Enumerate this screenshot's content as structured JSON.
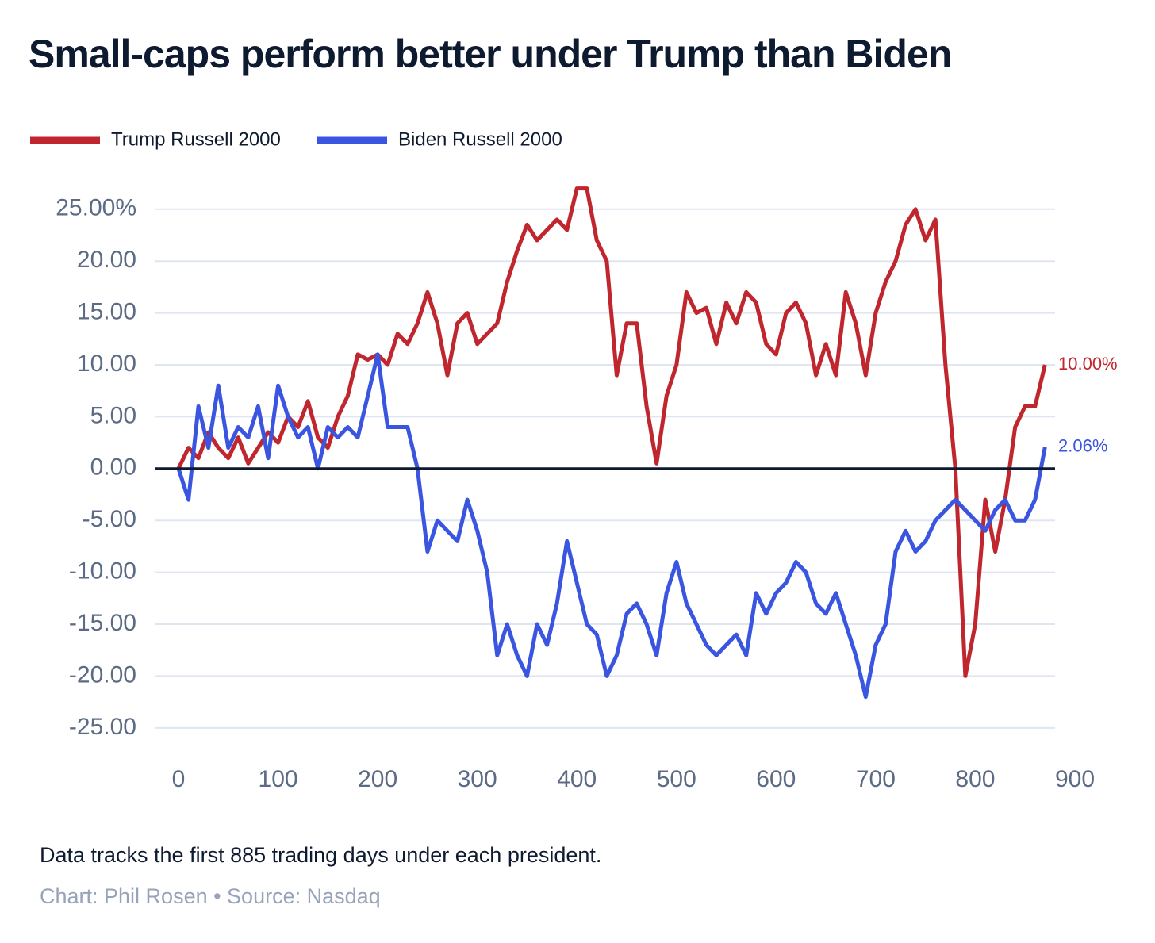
{
  "chart_data": {
    "type": "line",
    "title": "Small-caps perform better under Trump than Biden",
    "caption": "Data tracks the first 885 trading days under each president.",
    "source": "Chart: Phil Rosen • Source: Nasdaq",
    "x": [
      0,
      10,
      20,
      30,
      40,
      50,
      60,
      70,
      80,
      90,
      100,
      110,
      120,
      130,
      140,
      150,
      160,
      170,
      180,
      190,
      200,
      210,
      220,
      230,
      240,
      250,
      260,
      270,
      280,
      290,
      300,
      310,
      320,
      330,
      340,
      350,
      360,
      370,
      380,
      390,
      400,
      410,
      420,
      430,
      440,
      450,
      460,
      470,
      480,
      490,
      500,
      510,
      520,
      530,
      540,
      550,
      560,
      570,
      580,
      590,
      600,
      610,
      620,
      630,
      640,
      650,
      660,
      670,
      680,
      690,
      700,
      710,
      720,
      730,
      740,
      750,
      760,
      770,
      780,
      790,
      800,
      810,
      820,
      830,
      840,
      850,
      860,
      870
    ],
    "series": [
      {
        "name": "Trump Russell 2000",
        "color": "#c0262d",
        "end_label": "10.00%",
        "values": [
          0,
          2,
          1,
          3.5,
          2,
          1,
          3,
          0.5,
          2,
          3.5,
          2.5,
          5,
          4,
          6.5,
          3,
          2,
          5,
          7,
          11,
          10.5,
          11,
          10,
          13,
          12,
          14,
          17,
          14,
          9,
          14,
          15,
          12,
          13,
          14,
          18,
          21,
          23.5,
          22,
          23,
          24,
          23,
          27,
          27,
          22,
          20,
          9,
          14,
          14,
          6,
          0.5,
          7,
          10,
          17,
          15,
          15.5,
          12,
          16,
          14,
          17,
          16,
          12,
          11,
          15,
          16,
          14,
          9,
          12,
          9,
          17,
          14,
          9,
          15,
          18,
          20,
          23.5,
          25,
          22,
          24,
          10,
          0,
          -20,
          -15,
          -3,
          -8,
          -3,
          4,
          6,
          6,
          10
        ]
      },
      {
        "name": "Biden Russell 2000",
        "color": "#3a55e0",
        "end_label": "2.06%",
        "values": [
          0,
          -3,
          6,
          2,
          8,
          2,
          4,
          3,
          6,
          1,
          8,
          5,
          3,
          4,
          0,
          4,
          3,
          4,
          3,
          7,
          11,
          4,
          4,
          4,
          0,
          -8,
          -5,
          -6,
          -7,
          -3,
          -6,
          -10,
          -18,
          -15,
          -18,
          -20,
          -15,
          -17,
          -13,
          -7,
          -11,
          -15,
          -16,
          -20,
          -18,
          -14,
          -13,
          -15,
          -18,
          -12,
          -9,
          -13,
          -15,
          -17,
          -18,
          -17,
          -16,
          -18,
          -12,
          -14,
          -12,
          -11,
          -9,
          -10,
          -13,
          -14,
          -12,
          -15,
          -18,
          -22,
          -17,
          -15,
          -8,
          -6,
          -8,
          -7,
          -5,
          -4,
          -3,
          -4,
          -5,
          -6,
          -4,
          -3,
          -5,
          -5,
          -3,
          2.06
        ]
      }
    ],
    "xlim": [
      0,
      900
    ],
    "xticks": [
      0,
      100,
      200,
      300,
      400,
      500,
      600,
      700,
      800,
      900
    ],
    "ylim": [
      -27,
      28.5
    ],
    "yticks": [
      {
        "value": 25,
        "label": "25.00%"
      },
      {
        "value": 20,
        "label": "20.00"
      },
      {
        "value": 15,
        "label": "15.00"
      },
      {
        "value": 10,
        "label": "10.00"
      },
      {
        "value": 5,
        "label": "5.00"
      },
      {
        "value": 0,
        "label": "0.00"
      },
      {
        "value": -5,
        "label": "-5.00"
      },
      {
        "value": -10,
        "label": "-10.00"
      },
      {
        "value": -15,
        "label": "-15.00"
      },
      {
        "value": -20,
        "label": "-20.00"
      },
      {
        "value": -25,
        "label": "-25.00"
      }
    ],
    "grid": true
  }
}
